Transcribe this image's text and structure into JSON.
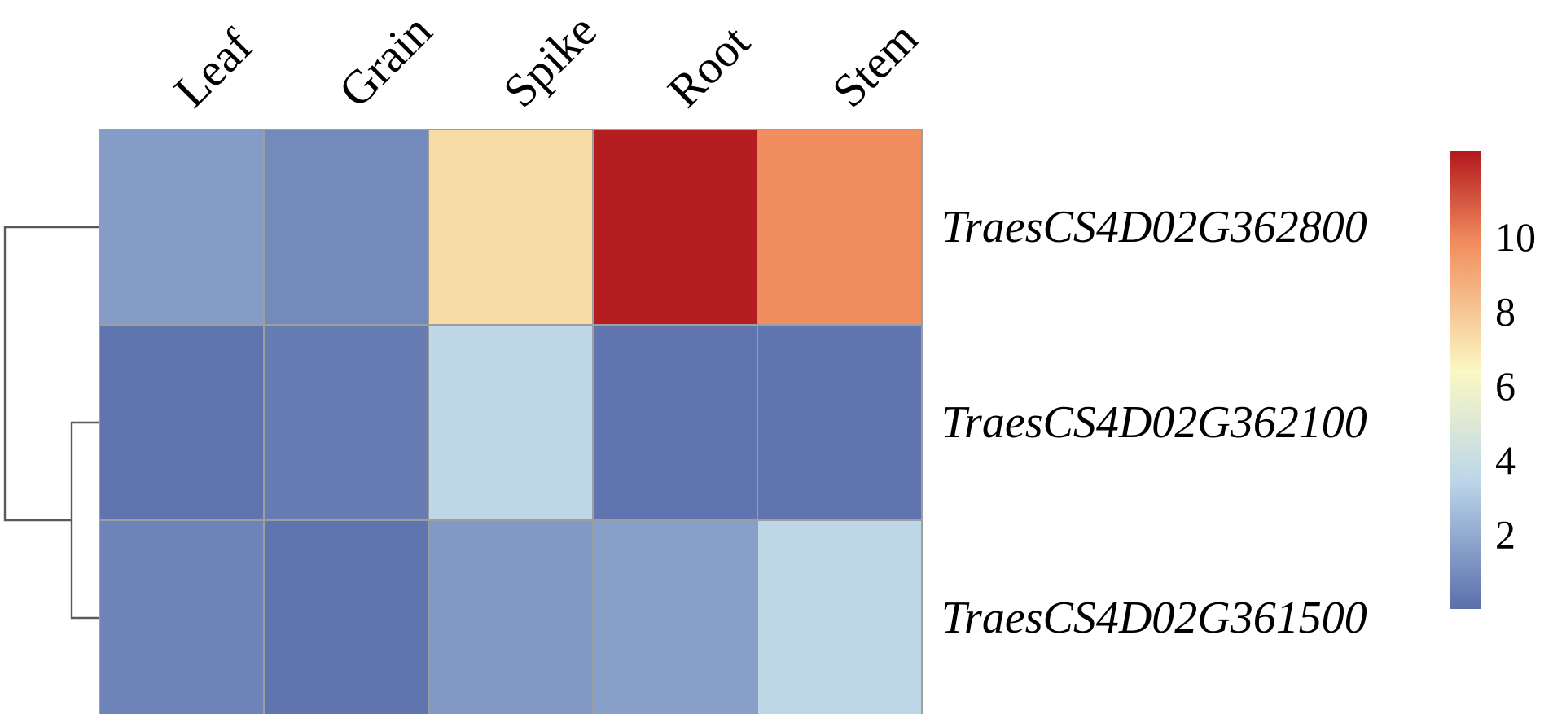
{
  "chart_data": {
    "type": "heatmap",
    "title": "",
    "columns": [
      "Leaf",
      "Grain",
      "Spike",
      "Root",
      "Stem"
    ],
    "rows": [
      "TraesCS4D02G362800",
      "TraesCS4D02G362100",
      "TraesCS4D02G361500"
    ],
    "values": [
      [
        1.5,
        0.9,
        7.3,
        12.2,
        9.8
      ],
      [
        0.2,
        0.4,
        3.6,
        0.2,
        0.2
      ],
      [
        0.7,
        0.2,
        1.4,
        1.6,
        3.6
      ]
    ],
    "color_scale": {
      "min": 0,
      "max": 12.3,
      "ticks": [
        2,
        4,
        6,
        8,
        10
      ],
      "colors": [
        "#5a6fab",
        "#bcd6ea",
        "#fbf8c3",
        "#f18d5e",
        "#b3181e"
      ],
      "stops": [
        0,
        0.28,
        0.52,
        0.8,
        1
      ]
    },
    "legend": "right",
    "dendrogram": "rows",
    "dendrogram_linkage": [
      [
        "TraesCS4D02G362100",
        "TraesCS4D02G361500"
      ],
      [
        "TraesCS4D02G362800",
        "cluster"
      ]
    ]
  }
}
